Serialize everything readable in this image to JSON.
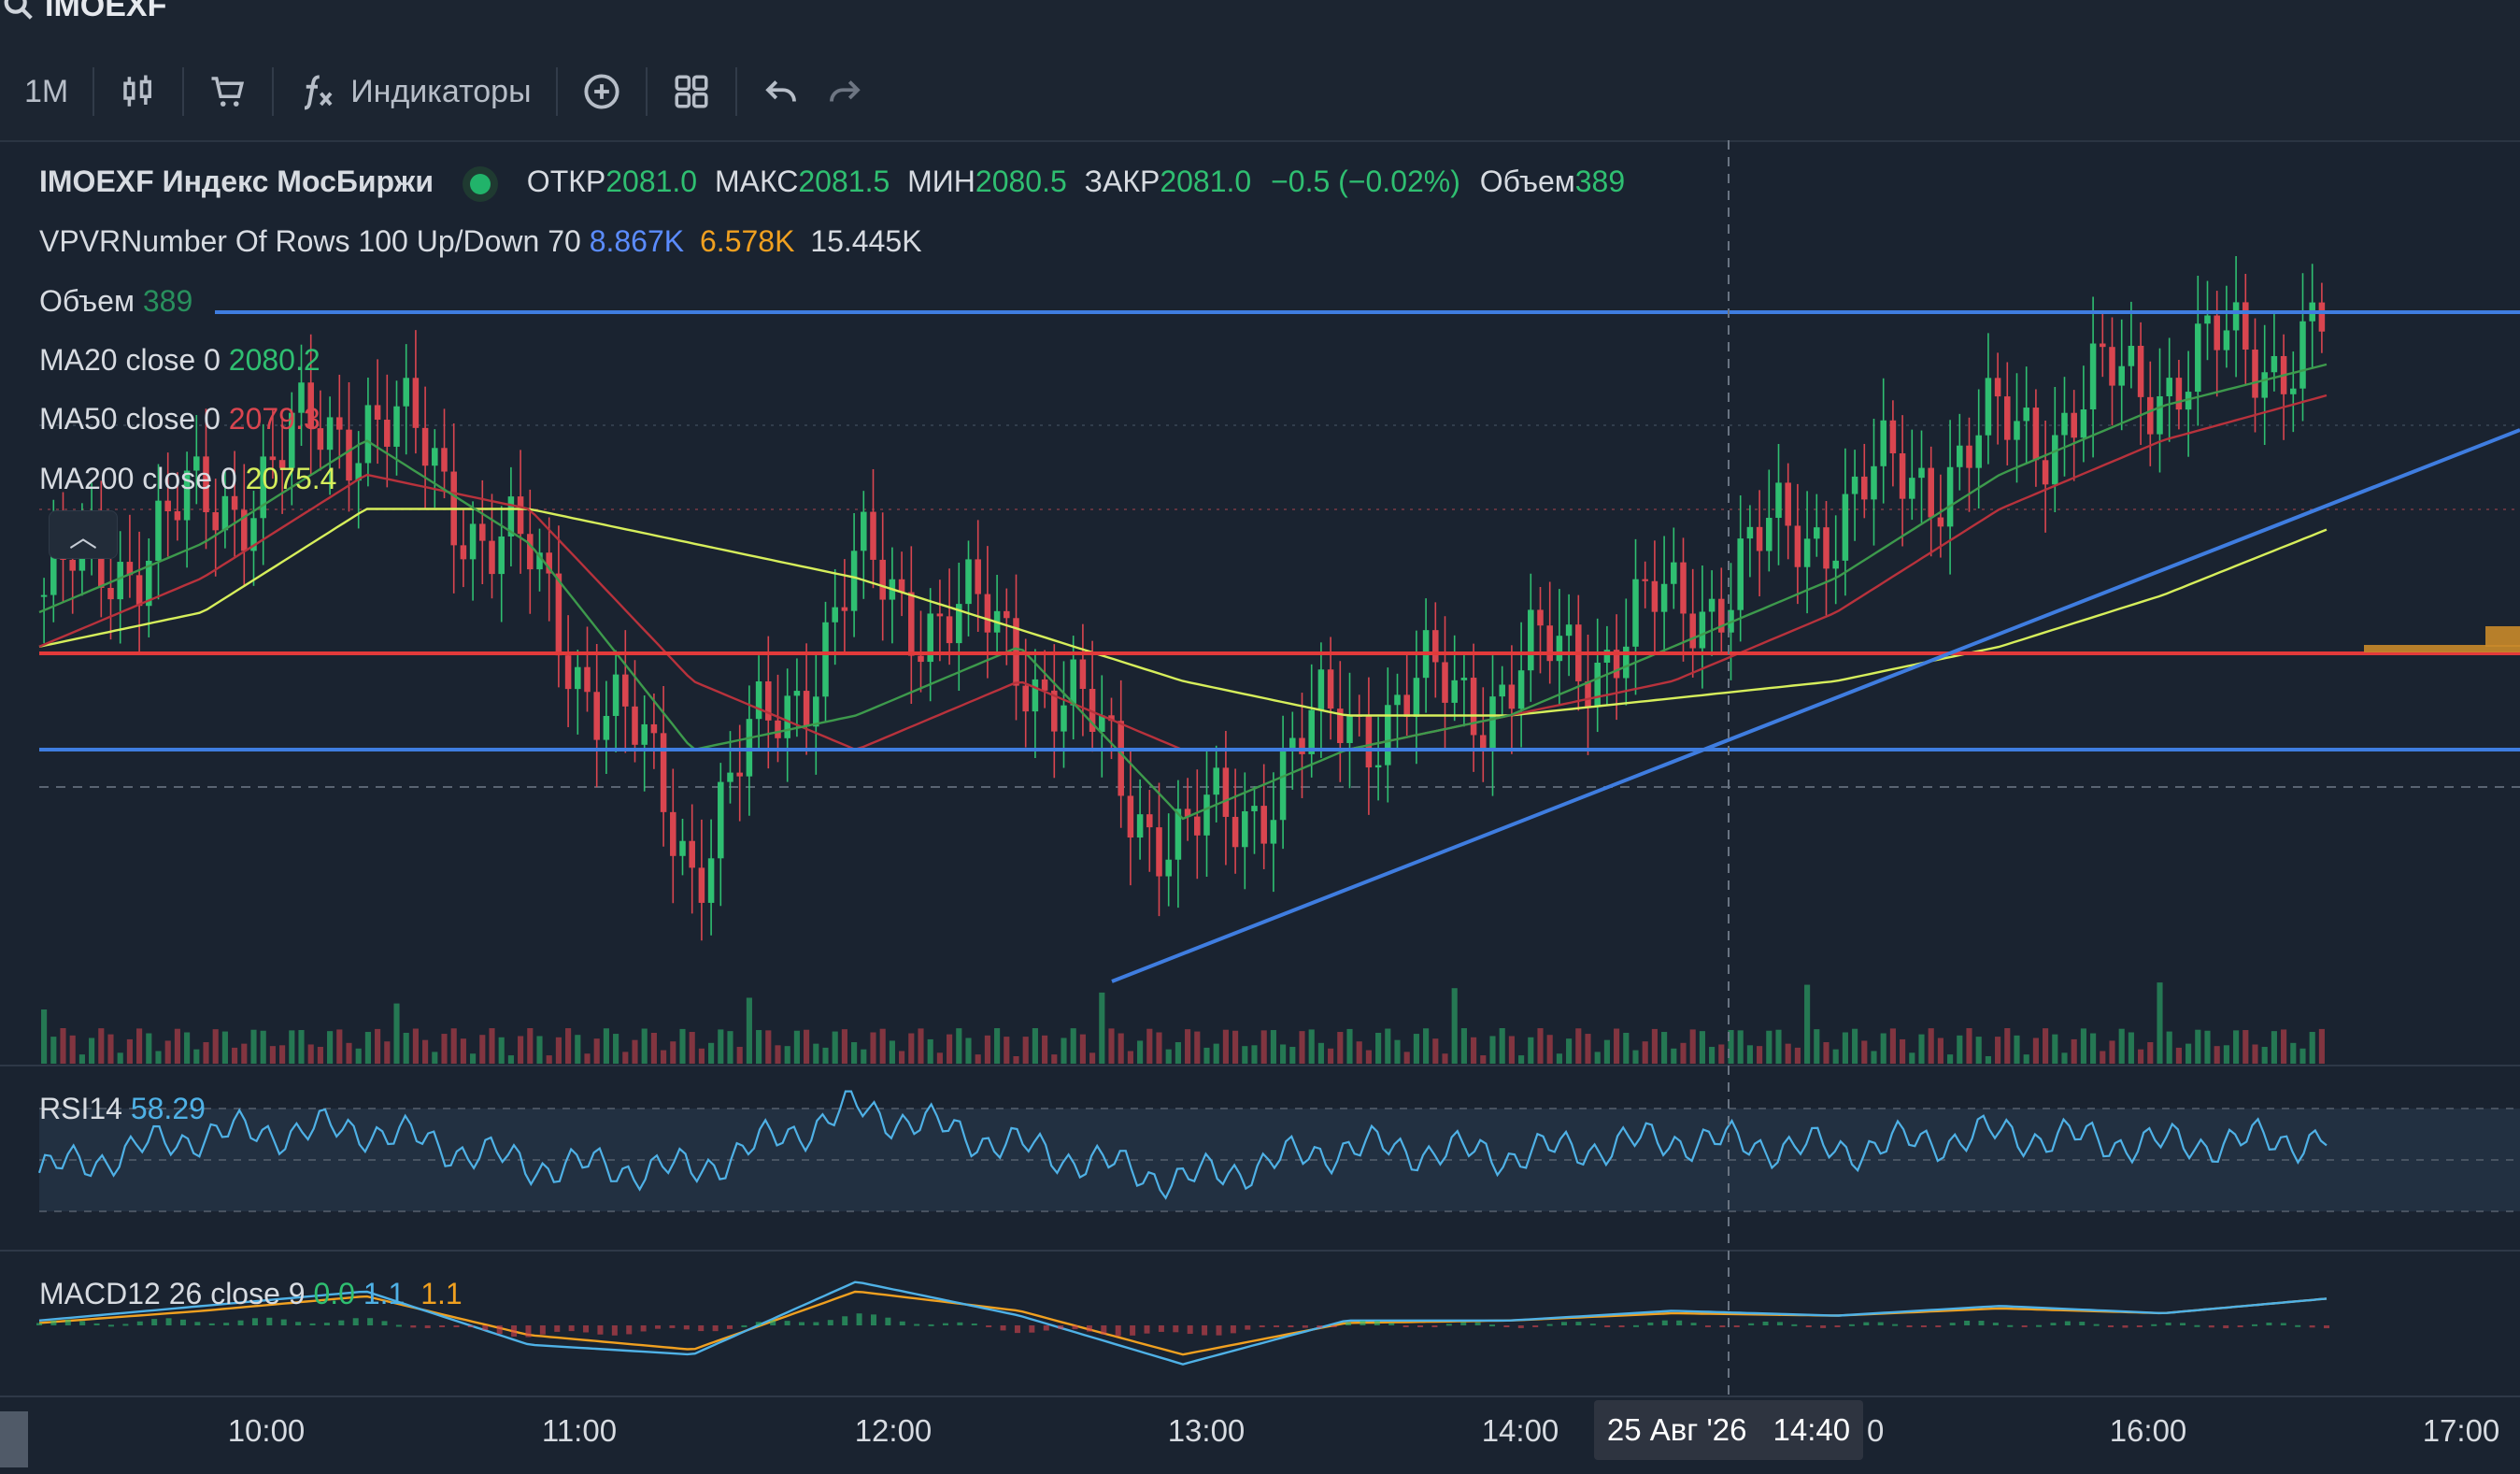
{
  "search": {
    "value": "IMOEXF"
  },
  "toolbar": {
    "interval_label": "1M",
    "indicators_label": "Индикаторы",
    "icons": [
      "candles-icon",
      "cart-icon",
      "function-icon",
      "add-circle-icon",
      "layouts-icon",
      "undo-icon",
      "redo-icon"
    ]
  },
  "legend": {
    "symbol_title": "IMOEXF Индекс МосБиржи",
    "open_label": "ОТКР",
    "open_value": "2081.0",
    "high_label": "МАКС",
    "high_value": "2081.5",
    "low_label": "МИН",
    "low_value": "2080.5",
    "close_label": "ЗАКР",
    "close_value": "2081.0",
    "change_value": "−0.5 (−0.02%)",
    "volume_label": "Объем",
    "volume_value": "389",
    "vpvr_label": "VPVRNumber Of Rows 100 Up/Down 70",
    "vpvr_up": "8.867K",
    "vpvr_down": "6.578K",
    "vpvr_total": "15.445K",
    "vol_row_label": "Объем",
    "vol_row_value": "389",
    "ma20_label": "MA20 close 0",
    "ma20_value": "2080.2",
    "ma50_label": "MA50 close 0",
    "ma50_value": "2079.3",
    "ma200_label": "MA200 close 0",
    "ma200_value": "2075.4"
  },
  "rsi": {
    "label": "RSI14",
    "value": "58.29"
  },
  "macd": {
    "label": "MACD12 26 close 9",
    "hist_value": "0.0",
    "macd_value": "1.1",
    "signal_value": "1.1"
  },
  "xaxis": {
    "ticks": [
      "10:00",
      "11:00",
      "12:00",
      "13:00",
      "14:00",
      "16:00",
      "17:00"
    ],
    "partial_tick": "0"
  },
  "crosshair": {
    "date_label": "25 Авг '26",
    "time_label": "14:40"
  },
  "colors": {
    "background": "#1a2330",
    "up": "#2fbf71",
    "down": "#d9454f",
    "ma20": "#3d9a4c",
    "ma50": "#b8323c",
    "ma200": "#d6ee5b",
    "hline_blue": "#3f7de0",
    "hline_red": "#e23a3a",
    "trendline": "#3f7de0",
    "rsi": "#4fb1e6",
    "macd": "#4fb1e6",
    "signal": "#f0a020"
  },
  "chart_data": {
    "type": "candlestick",
    "x": [
      "09:30",
      "10:00",
      "10:30",
      "11:00",
      "11:30",
      "12:00",
      "12:30",
      "13:00",
      "13:30",
      "14:00",
      "14:30",
      "15:00",
      "15:30",
      "16:00",
      "16:30"
    ],
    "close": [
      2073.5,
      2076,
      2079,
      2074,
      2066,
      2074,
      2072,
      2066,
      2070,
      2071,
      2073,
      2076,
      2078,
      2080,
      2081
    ],
    "ma20": [
      2073,
      2075,
      2078,
      2075,
      2069,
      2070,
      2072,
      2067,
      2069,
      2070,
      2072,
      2074,
      2077,
      2079,
      2080.2
    ],
    "ma50": [
      2072,
      2074,
      2077,
      2076,
      2071,
      2069,
      2071,
      2069,
      2069,
      2070,
      2071,
      2073,
      2076,
      2078,
      2079.3
    ],
    "ma200": [
      2072,
      2073,
      2076,
      2076,
      2075,
      2074,
      2072.5,
      2071,
      2070,
      2070,
      2070.5,
      2071,
      2072,
      2073.5,
      2075.4
    ],
    "rsi": [
      45,
      60,
      62,
      48,
      46,
      70,
      55,
      42,
      55,
      52,
      58,
      54,
      60,
      56,
      58.29
    ],
    "macd": [
      0.2,
      0.8,
      1.4,
      -0.8,
      -1.2,
      1.8,
      0.4,
      -1.6,
      0.2,
      0.2,
      0.6,
      0.4,
      0.8,
      0.5,
      1.1
    ],
    "signal": [
      0.1,
      0.6,
      1.2,
      -0.4,
      -1.0,
      1.4,
      0.6,
      -1.2,
      0.1,
      0.2,
      0.5,
      0.4,
      0.7,
      0.5,
      1.1
    ]
  }
}
